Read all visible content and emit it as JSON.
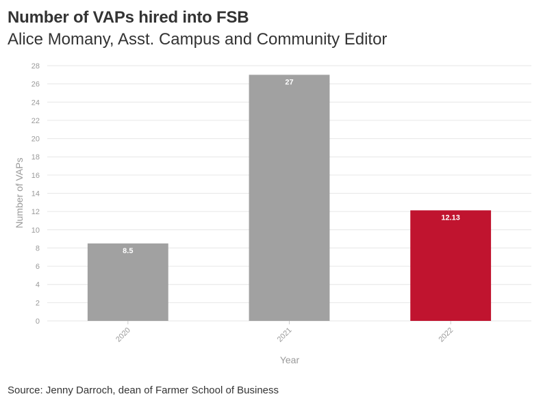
{
  "title": "Number of VAPs hired into FSB",
  "subtitle": "Alice Momany, Asst. Campus and Community Editor",
  "source": "Source: Jenny Darroch, dean of Farmer School of Business",
  "colors": {
    "default_bar": "#a1a1a1",
    "highlight_bar": "#c0142f",
    "grid": "#e6e6e6"
  },
  "chart_data": {
    "type": "bar",
    "categories": [
      "2020",
      "2021",
      "2022"
    ],
    "values": [
      8.5,
      27,
      12.13
    ],
    "value_labels": [
      "8.5",
      "27",
      "12.13"
    ],
    "highlight": "2022",
    "xlabel": "Year",
    "ylabel": "Number of VAPs",
    "ylim": [
      0,
      28
    ],
    "yticks": [
      0,
      2,
      4,
      6,
      8,
      10,
      12,
      14,
      16,
      18,
      20,
      22,
      24,
      26,
      28
    ],
    "grid": true
  }
}
